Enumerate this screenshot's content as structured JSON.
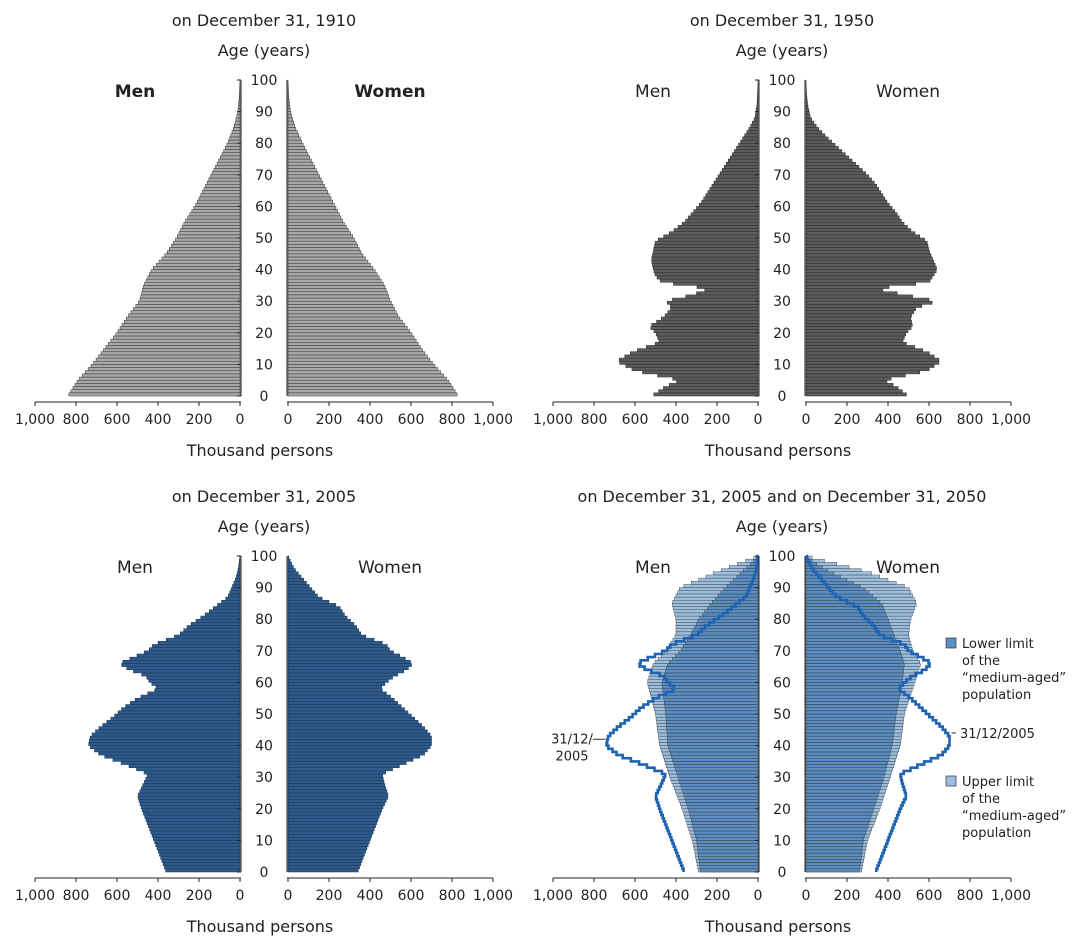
{
  "chart_data": [
    {
      "type": "population_pyramid",
      "title": "on December 31, 1910",
      "ylabel": "Age (years)",
      "xlabel": "Thousand persons",
      "men_label": "Men",
      "women_label": "Women",
      "bold_labels": true,
      "style": "light",
      "age_ticks": [
        "0",
        "10",
        "20",
        "30",
        "40",
        "50",
        "60",
        "70",
        "80",
        "90",
        "100"
      ],
      "x_ticks_left": [
        "1,000",
        "800",
        "600",
        "400",
        "200",
        "0"
      ],
      "x_ticks_right": [
        "0",
        "200",
        "400",
        "600",
        "800",
        "1,000"
      ],
      "xlim": [
        0,
        1000
      ],
      "ylim": [
        0,
        100
      ],
      "men": [
        [
          0,
          840
        ],
        [
          5,
          790
        ],
        [
          10,
          720
        ],
        [
          15,
          660
        ],
        [
          20,
          600
        ],
        [
          25,
          550
        ],
        [
          30,
          490
        ],
        [
          35,
          470
        ],
        [
          40,
          430
        ],
        [
          45,
          360
        ],
        [
          50,
          310
        ],
        [
          55,
          270
        ],
        [
          60,
          220
        ],
        [
          65,
          180
        ],
        [
          70,
          140
        ],
        [
          75,
          100
        ],
        [
          80,
          60
        ],
        [
          85,
          30
        ],
        [
          90,
          10
        ],
        [
          95,
          3
        ],
        [
          100,
          0
        ]
      ],
      "women": [
        [
          0,
          830
        ],
        [
          5,
          780
        ],
        [
          10,
          710
        ],
        [
          15,
          650
        ],
        [
          20,
          600
        ],
        [
          25,
          540
        ],
        [
          30,
          500
        ],
        [
          35,
          470
        ],
        [
          40,
          420
        ],
        [
          45,
          360
        ],
        [
          50,
          320
        ],
        [
          55,
          270
        ],
        [
          60,
          230
        ],
        [
          65,
          190
        ],
        [
          70,
          150
        ],
        [
          75,
          110
        ],
        [
          80,
          70
        ],
        [
          85,
          35
        ],
        [
          90,
          12
        ],
        [
          95,
          3
        ],
        [
          100,
          0
        ]
      ]
    },
    {
      "type": "population_pyramid",
      "title": "on December 31, 1950",
      "ylabel": "Age (years)",
      "xlabel": "Thousand persons",
      "men_label": "Men",
      "women_label": "Women",
      "bold_labels": false,
      "style": "dark",
      "age_ticks": [
        "0",
        "10",
        "20",
        "30",
        "40",
        "50",
        "60",
        "70",
        "80",
        "90",
        "100"
      ],
      "x_ticks_left": [
        "1,000",
        "800",
        "600",
        "400",
        "200",
        "0"
      ],
      "x_ticks_right": [
        "0",
        "200",
        "400",
        "600",
        "800",
        "1,000"
      ],
      "xlim": [
        0,
        1000
      ],
      "ylim": [
        0,
        100
      ],
      "men": [
        [
          0,
          520
        ],
        [
          3,
          450
        ],
        [
          5,
          380
        ],
        [
          8,
          600
        ],
        [
          11,
          690
        ],
        [
          14,
          610
        ],
        [
          17,
          480
        ],
        [
          20,
          500
        ],
        [
          22,
          530
        ],
        [
          25,
          460
        ],
        [
          28,
          420
        ],
        [
          30,
          450
        ],
        [
          32,
          320
        ],
        [
          34,
          240
        ],
        [
          36,
          470
        ],
        [
          38,
          500
        ],
        [
          40,
          510
        ],
        [
          43,
          520
        ],
        [
          46,
          510
        ],
        [
          49,
          500
        ],
        [
          52,
          420
        ],
        [
          55,
          360
        ],
        [
          58,
          320
        ],
        [
          61,
          280
        ],
        [
          64,
          250
        ],
        [
          67,
          220
        ],
        [
          70,
          190
        ],
        [
          73,
          160
        ],
        [
          76,
          130
        ],
        [
          79,
          100
        ],
        [
          82,
          70
        ],
        [
          85,
          40
        ],
        [
          88,
          15
        ],
        [
          92,
          5
        ],
        [
          96,
          2
        ],
        [
          100,
          0
        ]
      ],
      "women": [
        [
          0,
          500
        ],
        [
          3,
          440
        ],
        [
          5,
          380
        ],
        [
          8,
          590
        ],
        [
          11,
          660
        ],
        [
          14,
          590
        ],
        [
          17,
          470
        ],
        [
          20,
          490
        ],
        [
          22,
          520
        ],
        [
          25,
          510
        ],
        [
          28,
          540
        ],
        [
          30,
          640
        ],
        [
          32,
          480
        ],
        [
          34,
          340
        ],
        [
          36,
          600
        ],
        [
          38,
          620
        ],
        [
          40,
          640
        ],
        [
          43,
          620
        ],
        [
          46,
          600
        ],
        [
          49,
          590
        ],
        [
          52,
          520
        ],
        [
          55,
          470
        ],
        [
          58,
          440
        ],
        [
          61,
          400
        ],
        [
          64,
          370
        ],
        [
          67,
          340
        ],
        [
          70,
          300
        ],
        [
          73,
          250
        ],
        [
          76,
          200
        ],
        [
          79,
          150
        ],
        [
          82,
          100
        ],
        [
          85,
          55
        ],
        [
          88,
          22
        ],
        [
          92,
          8
        ],
        [
          96,
          2
        ],
        [
          100,
          0
        ]
      ]
    },
    {
      "type": "population_pyramid",
      "title": "on December 31, 2005",
      "ylabel": "Age (years)",
      "xlabel": "Thousand persons",
      "men_label": "Men",
      "women_label": "Women",
      "bold_labels": false,
      "style": "blue",
      "age_ticks": [
        "0",
        "10",
        "20",
        "30",
        "40",
        "50",
        "60",
        "70",
        "80",
        "90",
        "100"
      ],
      "x_ticks_left": [
        "1,000",
        "800",
        "600",
        "400",
        "200",
        "0"
      ],
      "x_ticks_right": [
        "0",
        "200",
        "400",
        "600",
        "800",
        "1,000"
      ],
      "xlim": [
        0,
        1000
      ],
      "ylim": [
        0,
        100
      ],
      "men": [
        [
          0,
          360
        ],
        [
          5,
          390
        ],
        [
          10,
          420
        ],
        [
          15,
          450
        ],
        [
          20,
          480
        ],
        [
          24,
          500
        ],
        [
          28,
          470
        ],
        [
          31,
          450
        ],
        [
          34,
          560
        ],
        [
          37,
          680
        ],
        [
          40,
          740
        ],
        [
          43,
          730
        ],
        [
          46,
          680
        ],
        [
          49,
          620
        ],
        [
          52,
          570
        ],
        [
          55,
          500
        ],
        [
          58,
          400
        ],
        [
          60,
          440
        ],
        [
          62,
          460
        ],
        [
          64,
          540
        ],
        [
          66,
          590
        ],
        [
          68,
          520
        ],
        [
          70,
          450
        ],
        [
          72,
          420
        ],
        [
          75,
          300
        ],
        [
          78,
          250
        ],
        [
          81,
          180
        ],
        [
          84,
          120
        ],
        [
          87,
          60
        ],
        [
          90,
          40
        ],
        [
          93,
          20
        ],
        [
          96,
          8
        ],
        [
          100,
          0
        ]
      ],
      "women": [
        [
          0,
          340
        ],
        [
          5,
          370
        ],
        [
          10,
          400
        ],
        [
          15,
          430
        ],
        [
          20,
          460
        ],
        [
          24,
          490
        ],
        [
          28,
          470
        ],
        [
          31,
          460
        ],
        [
          34,
          560
        ],
        [
          37,
          660
        ],
        [
          40,
          700
        ],
        [
          43,
          700
        ],
        [
          46,
          660
        ],
        [
          49,
          610
        ],
        [
          52,
          560
        ],
        [
          55,
          510
        ],
        [
          58,
          450
        ],
        [
          60,
          480
        ],
        [
          62,
          520
        ],
        [
          64,
          580
        ],
        [
          66,
          610
        ],
        [
          68,
          560
        ],
        [
          70,
          500
        ],
        [
          72,
          480
        ],
        [
          75,
          360
        ],
        [
          78,
          330
        ],
        [
          81,
          280
        ],
        [
          84,
          250
        ],
        [
          87,
          150
        ],
        [
          90,
          110
        ],
        [
          93,
          70
        ],
        [
          96,
          30
        ],
        [
          100,
          0
        ]
      ]
    },
    {
      "type": "population_pyramid",
      "title": "on December 31, 2005 and on December 31, 2050",
      "ylabel": "Age (years)",
      "xlabel": "Thousand persons",
      "men_label": "Men",
      "women_label": "Women",
      "bold_labels": false,
      "style": "projection",
      "age_ticks": [
        "0",
        "10",
        "20",
        "30",
        "40",
        "50",
        "60",
        "70",
        "80",
        "90",
        "100"
      ],
      "x_ticks_left": [
        "1,000",
        "800",
        "600",
        "400",
        "200",
        "0"
      ],
      "x_ticks_right": [
        "0",
        "200",
        "400",
        "600",
        "800",
        "1,000"
      ],
      "xlim": [
        0,
        1000
      ],
      "ylim": [
        0,
        100
      ],
      "legend": [
        {
          "name": "Lower limit of the “medium-aged” population",
          "lines": [
            "Lower limit",
            "of the",
            "“medium-aged”",
            "population"
          ],
          "color": "#5b8fc4"
        },
        {
          "name": "Upper limit of the “medium-aged” population",
          "lines": [
            "Upper limit",
            "of the",
            "“medium-aged”",
            "population"
          ],
          "color": "#9dbfdf"
        }
      ],
      "annotation_men": [
        "31/12/",
        "2005"
      ],
      "annotation_women": "31/12/2005",
      "men_lower": [
        [
          0,
          280
        ],
        [
          10,
          300
        ],
        [
          20,
          340
        ],
        [
          30,
          390
        ],
        [
          40,
          440
        ],
        [
          50,
          450
        ],
        [
          60,
          470
        ],
        [
          66,
          440
        ],
        [
          70,
          380
        ],
        [
          75,
          330
        ],
        [
          80,
          290
        ],
        [
          85,
          230
        ],
        [
          90,
          160
        ],
        [
          95,
          80
        ],
        [
          98,
          30
        ],
        [
          100,
          0
        ]
      ],
      "men_upper": [
        [
          0,
          290
        ],
        [
          10,
          320
        ],
        [
          20,
          370
        ],
        [
          30,
          430
        ],
        [
          40,
          480
        ],
        [
          50,
          500
        ],
        [
          60,
          540
        ],
        [
          66,
          510
        ],
        [
          70,
          450
        ],
        [
          75,
          400
        ],
        [
          80,
          400
        ],
        [
          85,
          420
        ],
        [
          90,
          380
        ],
        [
          95,
          200
        ],
        [
          98,
          80
        ],
        [
          100,
          0
        ]
      ],
      "women_lower": [
        [
          0,
          260
        ],
        [
          10,
          280
        ],
        [
          20,
          330
        ],
        [
          30,
          380
        ],
        [
          40,
          420
        ],
        [
          50,
          440
        ],
        [
          60,
          470
        ],
        [
          66,
          480
        ],
        [
          70,
          460
        ],
        [
          75,
          430
        ],
        [
          80,
          400
        ],
        [
          85,
          370
        ],
        [
          90,
          280
        ],
        [
          95,
          120
        ],
        [
          98,
          40
        ],
        [
          100,
          0
        ]
      ],
      "women_upper": [
        [
          0,
          270
        ],
        [
          10,
          300
        ],
        [
          20,
          360
        ],
        [
          30,
          410
        ],
        [
          40,
          460
        ],
        [
          50,
          480
        ],
        [
          60,
          530
        ],
        [
          66,
          560
        ],
        [
          70,
          520
        ],
        [
          75,
          500
        ],
        [
          80,
          510
        ],
        [
          85,
          540
        ],
        [
          90,
          500
        ],
        [
          95,
          300
        ],
        [
          98,
          120
        ],
        [
          100,
          0
        ]
      ],
      "men_2005": [
        [
          0,
          360
        ],
        [
          5,
          390
        ],
        [
          10,
          420
        ],
        [
          15,
          450
        ],
        [
          20,
          480
        ],
        [
          24,
          500
        ],
        [
          28,
          470
        ],
        [
          31,
          450
        ],
        [
          34,
          560
        ],
        [
          37,
          680
        ],
        [
          40,
          740
        ],
        [
          43,
          730
        ],
        [
          46,
          680
        ],
        [
          49,
          620
        ],
        [
          52,
          570
        ],
        [
          55,
          500
        ],
        [
          58,
          400
        ],
        [
          60,
          440
        ],
        [
          62,
          460
        ],
        [
          64,
          540
        ],
        [
          66,
          590
        ],
        [
          68,
          520
        ],
        [
          70,
          450
        ],
        [
          72,
          420
        ],
        [
          75,
          300
        ],
        [
          78,
          250
        ],
        [
          81,
          180
        ],
        [
          84,
          120
        ],
        [
          87,
          60
        ],
        [
          90,
          40
        ],
        [
          93,
          20
        ],
        [
          96,
          8
        ],
        [
          100,
          0
        ]
      ],
      "women_2005": [
        [
          0,
          340
        ],
        [
          5,
          370
        ],
        [
          10,
          400
        ],
        [
          15,
          430
        ],
        [
          20,
          460
        ],
        [
          24,
          490
        ],
        [
          28,
          470
        ],
        [
          31,
          460
        ],
        [
          34,
          560
        ],
        [
          37,
          660
        ],
        [
          40,
          700
        ],
        [
          43,
          700
        ],
        [
          46,
          660
        ],
        [
          49,
          610
        ],
        [
          52,
          560
        ],
        [
          55,
          510
        ],
        [
          58,
          450
        ],
        [
          60,
          480
        ],
        [
          62,
          520
        ],
        [
          64,
          580
        ],
        [
          66,
          610
        ],
        [
          68,
          560
        ],
        [
          70,
          500
        ],
        [
          72,
          480
        ],
        [
          75,
          360
        ],
        [
          78,
          330
        ],
        [
          81,
          280
        ],
        [
          84,
          250
        ],
        [
          87,
          150
        ],
        [
          90,
          110
        ],
        [
          93,
          70
        ],
        [
          96,
          30
        ],
        [
          100,
          0
        ]
      ]
    }
  ]
}
